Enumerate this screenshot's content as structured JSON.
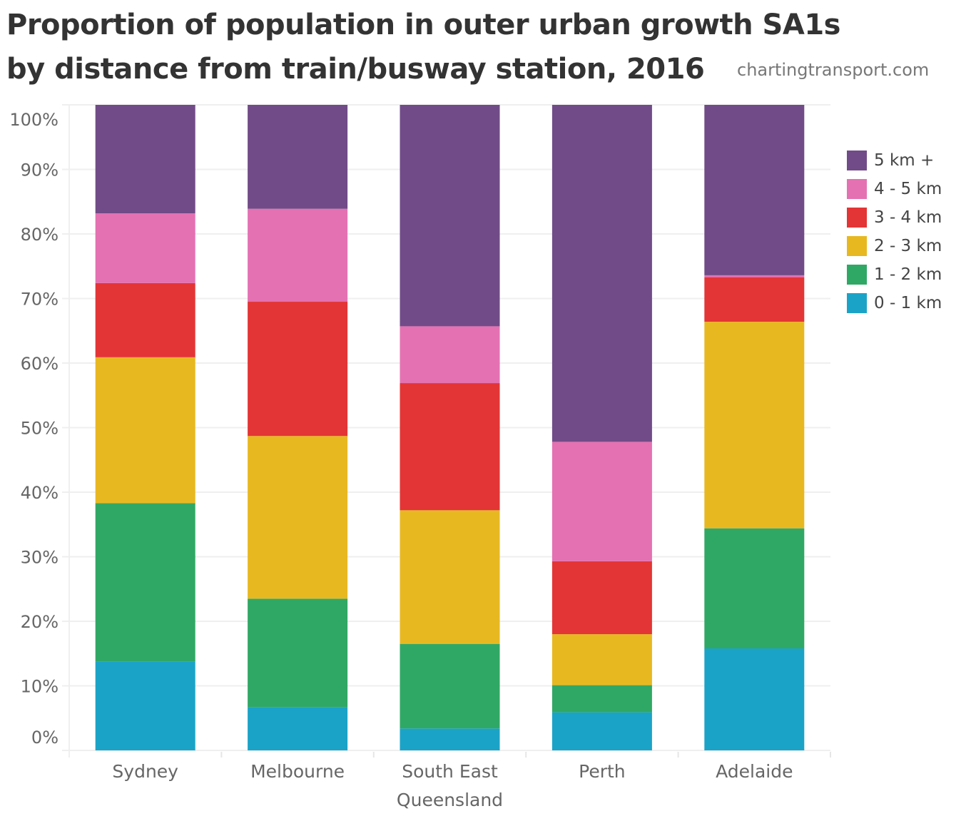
{
  "header": {
    "title_line1": "Proportion of population in outer urban growth SA1s",
    "title_line2": "by distance from train/busway station, 2016",
    "watermark": "chartingtransport.com"
  },
  "colors": {
    "5 km +": "#714b87",
    "4 - 5 km": "#e471b2",
    "3 - 4 km": "#e33535",
    "2 - 3 km": "#e8b821",
    "1 - 2 km": "#30a865",
    "0 - 1 km": "#1ba3c7",
    "gridline": "#efefef",
    "tick_label": "#666666"
  },
  "chart_data": {
    "type": "bar",
    "stacked": true,
    "normalized": true,
    "title": "Proportion of population in outer urban growth SA1s by distance from train/busway station, 2016",
    "xlabel": "",
    "ylabel": "",
    "ylim": [
      0,
      100
    ],
    "yticks": [
      "0%",
      "10%",
      "20%",
      "30%",
      "40%",
      "50%",
      "60%",
      "70%",
      "80%",
      "90%",
      "100%"
    ],
    "grid": true,
    "legend_position": "right",
    "categories": [
      "Sydney",
      "Melbourne",
      "South East Queensland",
      "Perth",
      "Adelaide"
    ],
    "category_labels": [
      [
        "Sydney"
      ],
      [
        "Melbourne"
      ],
      [
        "South East",
        "Queensland"
      ],
      [
        "Perth"
      ],
      [
        "Adelaide"
      ]
    ],
    "series": [
      {
        "name": "0 - 1 km",
        "values": [
          13.8,
          6.7,
          3.4,
          5.9,
          15.8
        ]
      },
      {
        "name": "1 - 2 km",
        "values": [
          24.5,
          16.8,
          13.1,
          4.2,
          18.6
        ]
      },
      {
        "name": "2 - 3 km",
        "values": [
          22.6,
          25.2,
          20.7,
          7.9,
          32.0
        ]
      },
      {
        "name": "3 - 4 km",
        "values": [
          11.5,
          20.8,
          19.7,
          11.3,
          6.9
        ]
      },
      {
        "name": "4 - 5 km",
        "values": [
          10.8,
          14.4,
          8.8,
          18.5,
          0.3
        ]
      },
      {
        "name": "5 km +",
        "values": [
          16.8,
          16.1,
          34.3,
          52.2,
          26.4
        ]
      }
    ],
    "legend": [
      "5 km +",
      "4 - 5 km",
      "3 - 4 km",
      "2 - 3 km",
      "1 - 2 km",
      "0 - 1 km"
    ]
  }
}
